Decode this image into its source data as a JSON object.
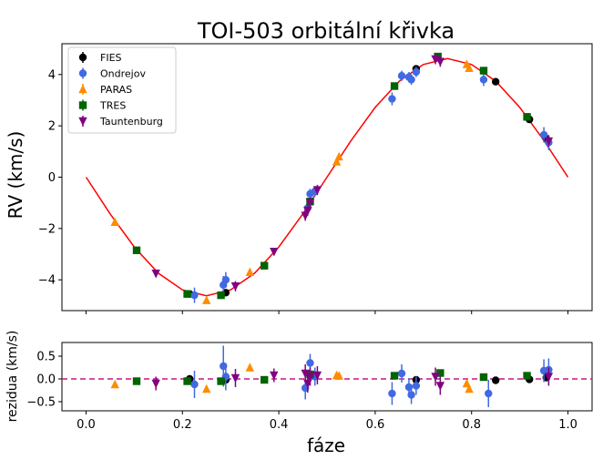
{
  "chart_data": [
    {
      "type": "scatter",
      "title": "TOI-503 orbitální křivka",
      "xlabel": "",
      "ylabel": "RV (km/s)",
      "xlim": [
        -0.05,
        1.05
      ],
      "ylim": [
        -5.2,
        5.2
      ],
      "yticks": [
        "−4",
        "−2",
        "0",
        "2",
        "4"
      ],
      "legend_position": "top-left",
      "model": {
        "name": "",
        "color": "#ff0000",
        "x": [
          0.0,
          0.05,
          0.1,
          0.15,
          0.2,
          0.25,
          0.3,
          0.35,
          0.4,
          0.45,
          0.5,
          0.55,
          0.6,
          0.65,
          0.7,
          0.75,
          0.8,
          0.85,
          0.9,
          0.95,
          1.0
        ],
        "y": [
          0.0,
          -1.43,
          -2.72,
          -3.74,
          -4.39,
          -4.62,
          -4.39,
          -3.74,
          -2.72,
          -1.43,
          0.0,
          1.43,
          2.72,
          3.74,
          4.39,
          4.62,
          4.39,
          3.74,
          2.72,
          1.43,
          0.0
        ]
      },
      "series": [
        {
          "name": "FIES",
          "marker": "circle",
          "color": "#000000",
          "points": [
            [
              0.215,
              -4.55,
              0.1
            ],
            [
              0.29,
              -4.5,
              0.1
            ],
            [
              0.685,
              4.22,
              0.1
            ],
            [
              0.85,
              3.72,
              0.1
            ],
            [
              0.92,
              2.25,
              0.1
            ],
            [
              0.955,
              1.5,
              0.1
            ]
          ]
        },
        {
          "name": "Ondrejov",
          "marker": "circle",
          "color": "#4169e1",
          "points": [
            [
              0.225,
              -4.6,
              0.3
            ],
            [
              0.285,
              -4.2,
              0.35
            ],
            [
              0.29,
              -4.0,
              0.3
            ],
            [
              0.46,
              -1.2,
              0.2
            ],
            [
              0.465,
              -0.65,
              0.2
            ],
            [
              0.475,
              -0.55,
              0.2
            ],
            [
              0.635,
              3.05,
              0.25
            ],
            [
              0.655,
              3.95,
              0.2
            ],
            [
              0.67,
              3.9,
              0.2
            ],
            [
              0.675,
              3.8,
              0.2
            ],
            [
              0.685,
              4.1,
              0.2
            ],
            [
              0.825,
              3.8,
              0.25
            ],
            [
              0.95,
              1.65,
              0.3
            ],
            [
              0.96,
              1.35,
              0.3
            ]
          ]
        },
        {
          "name": "PARAS",
          "marker": "triangle",
          "color": "#ff8c00",
          "points": [
            [
              0.06,
              -1.75,
              0.05
            ],
            [
              0.25,
              -4.8,
              0.05
            ],
            [
              0.34,
              -3.7,
              0.05
            ],
            [
              0.52,
              0.6,
              0.05
            ],
            [
              0.525,
              0.8,
              0.05
            ],
            [
              0.79,
              4.4,
              0.05
            ],
            [
              0.795,
              4.25,
              0.05
            ]
          ]
        },
        {
          "name": "TRES",
          "marker": "square",
          "color": "#006400",
          "points": [
            [
              0.105,
              -2.85,
              0.05
            ],
            [
              0.21,
              -4.55,
              0.05
            ],
            [
              0.28,
              -4.6,
              0.05
            ],
            [
              0.37,
              -3.45,
              0.05
            ],
            [
              0.465,
              -0.95,
              0.05
            ],
            [
              0.64,
              3.55,
              0.05
            ],
            [
              0.73,
              4.7,
              0.05
            ],
            [
              0.825,
              4.15,
              0.05
            ],
            [
              0.915,
              2.35,
              0.05
            ]
          ]
        },
        {
          "name": "Tauntenburg",
          "marker": "triangle-down",
          "color": "#800080",
          "points": [
            [
              0.145,
              -3.75,
              0.15
            ],
            [
              0.31,
              -4.25,
              0.2
            ],
            [
              0.39,
              -2.9,
              0.15
            ],
            [
              0.455,
              -1.5,
              0.2
            ],
            [
              0.46,
              -1.3,
              0.2
            ],
            [
              0.465,
              -1.0,
              0.2
            ],
            [
              0.48,
              -0.5,
              0.2
            ],
            [
              0.725,
              4.6,
              0.2
            ],
            [
              0.735,
              4.5,
              0.2
            ],
            [
              0.96,
              1.4,
              0.2
            ]
          ]
        }
      ]
    },
    {
      "type": "scatter",
      "title": "",
      "xlabel": "fáze",
      "ylabel": "rezidua (km/s)",
      "xlim": [
        -0.05,
        1.05
      ],
      "ylim": [
        -0.7,
        0.8
      ],
      "xticks": [
        "0.0",
        "0.2",
        "0.4",
        "0.6",
        "0.8",
        "1.0"
      ],
      "yticks": [
        "−0.5",
        "0.0",
        "0.5"
      ],
      "zero_line": {
        "y": 0,
        "color": "#c71585",
        "style": "dashed"
      },
      "series": [
        {
          "name": "FIES",
          "marker": "circle",
          "color": "#000000",
          "points": [
            [
              0.215,
              0.0,
              0.05
            ],
            [
              0.29,
              -0.02,
              0.05
            ],
            [
              0.685,
              -0.02,
              0.05
            ],
            [
              0.85,
              -0.03,
              0.05
            ],
            [
              0.92,
              -0.01,
              0.05
            ],
            [
              0.955,
              0.03,
              0.05
            ]
          ]
        },
        {
          "name": "Ondrejov",
          "marker": "circle",
          "color": "#4169e1",
          "points": [
            [
              0.225,
              -0.12,
              0.3
            ],
            [
              0.285,
              0.28,
              0.45
            ],
            [
              0.29,
              0.05,
              0.3
            ],
            [
              0.455,
              -0.2,
              0.25
            ],
            [
              0.465,
              0.35,
              0.2
            ],
            [
              0.475,
              0.05,
              0.2
            ],
            [
              0.635,
              -0.32,
              0.25
            ],
            [
              0.655,
              0.12,
              0.2
            ],
            [
              0.67,
              -0.18,
              0.2
            ],
            [
              0.675,
              -0.35,
              0.2
            ],
            [
              0.685,
              -0.15,
              0.2
            ],
            [
              0.835,
              -0.32,
              0.3
            ],
            [
              0.95,
              0.18,
              0.25
            ],
            [
              0.96,
              0.2,
              0.25
            ]
          ]
        },
        {
          "name": "PARAS",
          "marker": "triangle",
          "color": "#ff8c00",
          "points": [
            [
              0.06,
              -0.12,
              0.05
            ],
            [
              0.25,
              -0.22,
              0.05
            ],
            [
              0.34,
              0.25,
              0.05
            ],
            [
              0.52,
              0.08,
              0.05
            ],
            [
              0.525,
              0.07,
              0.05
            ],
            [
              0.79,
              -0.1,
              0.05
            ],
            [
              0.795,
              -0.22,
              0.05
            ]
          ]
        },
        {
          "name": "TRES",
          "marker": "square",
          "color": "#006400",
          "points": [
            [
              0.105,
              -0.05,
              0.05
            ],
            [
              0.21,
              -0.05,
              0.05
            ],
            [
              0.28,
              -0.05,
              0.05
            ],
            [
              0.37,
              -0.02,
              0.05
            ],
            [
              0.465,
              0.1,
              0.05
            ],
            [
              0.64,
              0.07,
              0.05
            ],
            [
              0.735,
              0.13,
              0.05
            ],
            [
              0.825,
              0.04,
              0.05
            ],
            [
              0.915,
              0.07,
              0.05
            ]
          ]
        },
        {
          "name": "Tauntenburg",
          "marker": "triangle-down",
          "color": "#800080",
          "points": [
            [
              0.145,
              -0.1,
              0.15
            ],
            [
              0.31,
              0.02,
              0.2
            ],
            [
              0.39,
              0.08,
              0.15
            ],
            [
              0.455,
              0.12,
              0.2
            ],
            [
              0.46,
              -0.1,
              0.2
            ],
            [
              0.465,
              0.05,
              0.2
            ],
            [
              0.48,
              0.08,
              0.2
            ],
            [
              0.725,
              0.05,
              0.2
            ],
            [
              0.735,
              -0.15,
              0.2
            ],
            [
              0.96,
              0.05,
              0.2
            ]
          ]
        }
      ]
    }
  ]
}
